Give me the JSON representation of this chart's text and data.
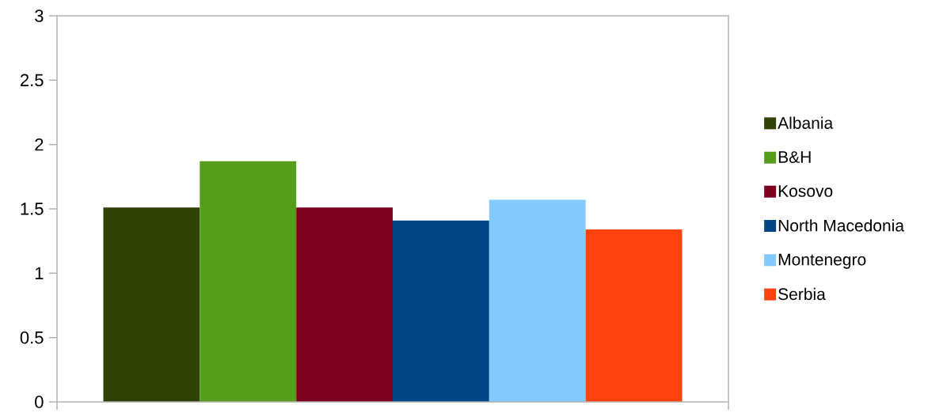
{
  "chart_data": {
    "type": "bar",
    "categories": [
      null
    ],
    "series": [
      {
        "name": "Albania",
        "color": "#314004",
        "values": [
          1.51
        ]
      },
      {
        "name": "B&H",
        "color": "#579d1c",
        "values": [
          1.87
        ]
      },
      {
        "name": "Kosovo",
        "color": "#7e0021",
        "values": [
          1.51
        ]
      },
      {
        "name": "North Macedonia",
        "color": "#004586",
        "values": [
          1.41
        ]
      },
      {
        "name": "Montenegro",
        "color": "#83caff",
        "values": [
          1.57
        ]
      },
      {
        "name": "Serbia",
        "color": "#ff420e",
        "values": [
          1.34
        ]
      }
    ],
    "ylim": [
      0,
      3
    ],
    "yticks": [
      0,
      0.5,
      1,
      1.5,
      2,
      2.5,
      3
    ],
    "legend": "right"
  }
}
